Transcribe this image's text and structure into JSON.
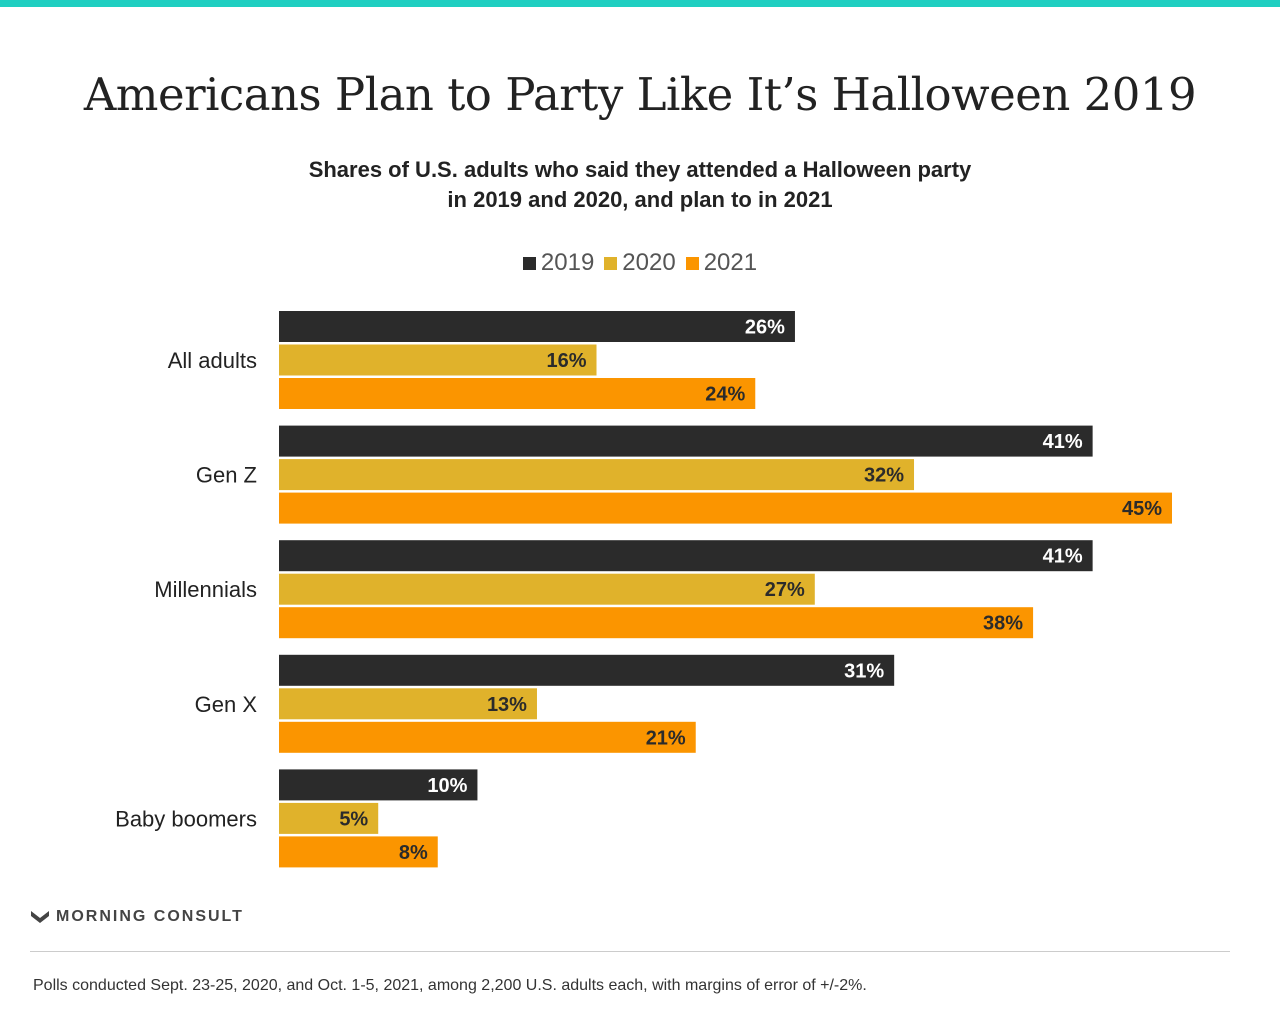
{
  "colors": {
    "accent_bar": "#1fcfc1",
    "series_2019": "#2b2b2b",
    "series_2020": "#e0b22b",
    "series_2021": "#fb9500"
  },
  "footer": {
    "logo_text": "MORNING CONSULT",
    "logo_icon": "morning-consult-m-icon",
    "footnote": "Polls conducted Sept. 23-25, 2020, and Oct. 1-5, 2021, among 2,200 U.S. adults each, with margins of error of +/-2%."
  },
  "chart_data": {
    "type": "bar",
    "orientation": "horizontal",
    "title": "Americans Plan to Party Like It’s Halloween 2019",
    "subtitle_lines": [
      "Shares of U.S. adults who said they attended a Halloween party",
      "in 2019 and 2020, and plan to in 2021"
    ],
    "categories": [
      "All adults",
      "Gen Z",
      "Millennials",
      "Gen X",
      "Baby boomers"
    ],
    "series": [
      {
        "name": "2019",
        "values": [
          26,
          41,
          41,
          31,
          10
        ],
        "labels": [
          "26%",
          "41%",
          "41%",
          "31%",
          "10%"
        ]
      },
      {
        "name": "2020",
        "values": [
          16,
          32,
          27,
          13,
          5
        ],
        "labels": [
          "16%",
          "32%",
          "27%",
          "13%",
          "5%"
        ]
      },
      {
        "name": "2021",
        "values": [
          24,
          45,
          38,
          21,
          8
        ],
        "labels": [
          "24%",
          "45%",
          "38%",
          "21%",
          "8%"
        ]
      }
    ],
    "legend": "top-center",
    "grid": false,
    "xlim": [
      0,
      45
    ],
    "unit": "%"
  }
}
